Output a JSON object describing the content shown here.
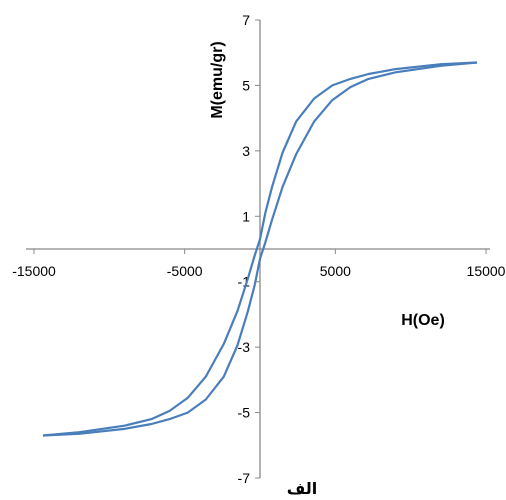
{
  "chart_data": {
    "type": "line",
    "xlabel": "H(Oe)",
    "ylabel": "M(emu/gr)",
    "caption": "الف",
    "xlim": [
      -15000,
      15000
    ],
    "ylim": [
      -7,
      7
    ],
    "x_ticks": [
      -15000,
      -5000,
      5000,
      15000
    ],
    "x_tick_labels": [
      "-15000",
      "-5000",
      "5000",
      "15000"
    ],
    "y_ticks": [
      -7,
      -5,
      -3,
      -1,
      1,
      3,
      5,
      7
    ],
    "y_tick_labels": [
      "-7",
      "-5",
      "-3",
      "-1",
      "1",
      "3",
      "5",
      "7"
    ],
    "grid": false,
    "legend": "none",
    "line_color": "#4a7ebb",
    "series": [
      {
        "x": [
          -14400,
          -12000,
          -9000,
          -7200,
          -6000,
          -4800,
          -3600,
          -2400,
          -1500,
          -800,
          -350,
          0,
          350,
          800,
          1500,
          2400,
          3600,
          4800,
          6000,
          7200,
          9000,
          12000,
          14400
        ],
        "y": [
          -5.7,
          -5.6,
          -5.4,
          -5.2,
          -4.95,
          -4.55,
          -3.9,
          -2.9,
          -1.9,
          -0.9,
          -0.2,
          0.3,
          1.1,
          1.9,
          2.95,
          3.9,
          4.6,
          5.0,
          5.2,
          5.35,
          5.5,
          5.65,
          5.7
        ]
      },
      {
        "x": [
          14400,
          12000,
          9000,
          7200,
          6000,
          4800,
          3600,
          2400,
          1500,
          800,
          350,
          0,
          -350,
          -800,
          -1500,
          -2400,
          -3600,
          -4800,
          -6000,
          -7200,
          -9000,
          -12000,
          -14400
        ],
        "y": [
          5.7,
          5.6,
          5.4,
          5.2,
          4.95,
          4.55,
          3.9,
          2.9,
          1.9,
          0.9,
          0.2,
          -0.3,
          -1.1,
          -1.9,
          -2.95,
          -3.9,
          -4.6,
          -5.0,
          -5.2,
          -5.35,
          -5.5,
          -5.65,
          -5.7
        ]
      }
    ]
  }
}
